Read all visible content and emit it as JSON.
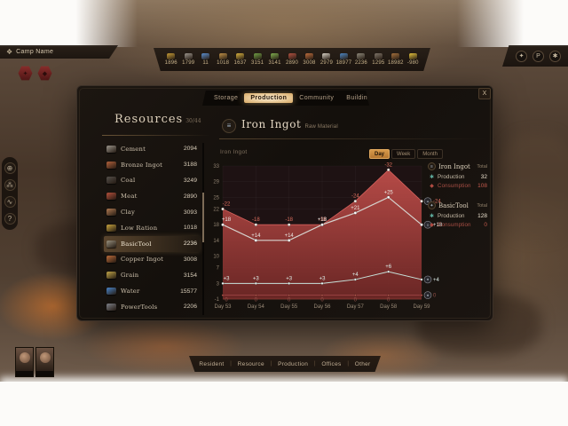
{
  "hud": {
    "camp_name": "Camp Name",
    "top_bar_items": [
      {
        "icon": "gold-ore-icon",
        "value": "1896",
        "color": "#c59a35"
      },
      {
        "icon": "stone-icon",
        "value": "1799",
        "color": "#9a948c"
      },
      {
        "icon": "gear-icon",
        "value": "11",
        "color": "#5b8fd0"
      },
      {
        "icon": "ration-icon",
        "value": "1018",
        "color": "#c09046"
      },
      {
        "icon": "beer-icon",
        "value": "1637",
        "color": "#d8b13e"
      },
      {
        "icon": "herb-icon",
        "value": "3151",
        "color": "#6f9e44"
      },
      {
        "icon": "sprout-icon",
        "value": "3141",
        "color": "#7fae4e"
      },
      {
        "icon": "meat-icon",
        "value": "2890",
        "color": "#b25040"
      },
      {
        "icon": "copper-icon",
        "value": "3008",
        "color": "#bd6c3c"
      },
      {
        "icon": "milk-icon",
        "value": "2979",
        "color": "#d8d2c6"
      },
      {
        "icon": "water-icon",
        "value": "18977",
        "color": "#4c86c2"
      },
      {
        "icon": "tool-icon",
        "value": "2236",
        "color": "#8b8678"
      },
      {
        "icon": "pickaxe-icon",
        "value": "1295",
        "color": "#7e7468"
      },
      {
        "icon": "bucket-icon",
        "value": "18982",
        "color": "#a5703c"
      },
      {
        "icon": "energy-icon",
        "value": "-980",
        "color": "#e3c23c"
      }
    ],
    "top_right_buttons": [
      {
        "name": "social-button"
      },
      {
        "name": "profile-button"
      },
      {
        "name": "settings-button"
      }
    ],
    "left_toolbar": [
      {
        "name": "globe-icon"
      },
      {
        "name": "share-icon"
      },
      {
        "name": "stats-icon"
      },
      {
        "name": "help-icon"
      }
    ],
    "bottom_bar": [
      "Resident",
      "Resource",
      "Production",
      "Offices",
      "Other"
    ]
  },
  "panel": {
    "tabs": [
      {
        "label": "Storage",
        "active": false
      },
      {
        "label": "Production",
        "active": true
      },
      {
        "label": "Community",
        "active": false
      },
      {
        "label": "Buildings",
        "active": false
      }
    ],
    "close_label": "X",
    "resources": {
      "title": "Resources",
      "count": "30/44",
      "items": [
        {
          "icon": "cement-icon",
          "name": "Cement",
          "value": "2094",
          "color": "#9b958c",
          "selected": false
        },
        {
          "icon": "bronze-ingot-icon",
          "name": "Bronze Ingot",
          "value": "3188",
          "color": "#b3623c",
          "selected": false
        },
        {
          "icon": "coal-icon",
          "name": "Coal",
          "value": "3249",
          "color": "#55504b",
          "selected": false
        },
        {
          "icon": "meat-icon",
          "name": "Meat",
          "value": "2890",
          "color": "#b5503c",
          "selected": false
        },
        {
          "icon": "clay-icon",
          "name": "Clay",
          "value": "3093",
          "color": "#b07a52",
          "selected": false
        },
        {
          "icon": "low-ration-icon",
          "name": "Low Ration",
          "value": "1018",
          "color": "#c8a43e",
          "selected": false
        },
        {
          "icon": "basic-tool-icon",
          "name": "BasicTool",
          "value": "2236",
          "color": "#98917f",
          "selected": true
        },
        {
          "icon": "copper-ingot-icon",
          "name": "Copper Ingot",
          "value": "3008",
          "color": "#bb6b3a",
          "selected": false
        },
        {
          "icon": "grain-icon",
          "name": "Grain",
          "value": "3154",
          "color": "#c2a649",
          "selected": false
        },
        {
          "icon": "water-icon",
          "name": "Water",
          "value": "15577",
          "color": "#4a84c8",
          "selected": false
        },
        {
          "icon": "power-tools-icon",
          "name": "PowerTools",
          "value": "2206",
          "color": "#7d8088",
          "selected": false
        }
      ]
    },
    "detail": {
      "title": "Iron Ingot",
      "subtitle": "Raw Material",
      "chart_label": "Iron Ingot",
      "range_tabs": [
        {
          "label": "Day",
          "active": true
        },
        {
          "label": "Week",
          "active": false
        },
        {
          "label": "Month",
          "active": false
        }
      ]
    },
    "stats": [
      {
        "name": "Iron Ingot",
        "total_label": "Total",
        "rows": [
          {
            "type": "production",
            "label": "Production",
            "value": "32"
          },
          {
            "type": "consumption",
            "label": "Consumption",
            "value": "108"
          }
        ]
      },
      {
        "name": "BasicTool",
        "total_label": "Total",
        "rows": [
          {
            "type": "production",
            "label": "Production",
            "value": "128"
          },
          {
            "type": "consumption",
            "label": "Consumption",
            "value": "0"
          }
        ]
      }
    ]
  },
  "chart_data": {
    "type": "area",
    "x": [
      "Day 53",
      "Day 54",
      "Day 55",
      "Day 56",
      "Day 57",
      "Day 58",
      "Day 59"
    ],
    "yticks": [
      33,
      29,
      25,
      22,
      18,
      14,
      10,
      7,
      3,
      -1
    ],
    "ylim": [
      -1,
      33
    ],
    "grid": true,
    "series": [
      {
        "name": "Iron Ingot Consumption",
        "kind": "area",
        "color": "#b84848",
        "values": [
          22,
          18,
          18,
          18,
          24,
          32,
          24
        ],
        "labels": [
          "-22",
          "-18",
          "-18",
          "-18",
          "-24",
          "-32",
          "-24"
        ]
      },
      {
        "name": "Iron Ingot Production",
        "kind": "line",
        "color": "#d6d3ce",
        "values": [
          18,
          14,
          14,
          18,
          21,
          25,
          18
        ],
        "labels": [
          "+18",
          "+14",
          "+14",
          "+18",
          "+21",
          "+25",
          "+18"
        ]
      },
      {
        "name": "BasicTool Production",
        "kind": "line",
        "color": "#c8e4dc",
        "values": [
          3,
          3,
          3,
          3,
          4,
          6,
          4
        ],
        "labels": [
          "+3",
          "+3",
          "+3",
          "+3",
          "+4",
          "+6",
          "+4"
        ]
      },
      {
        "name": "BasicTool Consumption",
        "kind": "line",
        "color": "#9c4444",
        "values": [
          0,
          0,
          0,
          0,
          0,
          0,
          0
        ],
        "labels": [
          "0",
          "0",
          "0",
          "0",
          "0",
          "0",
          "0"
        ]
      }
    ]
  }
}
